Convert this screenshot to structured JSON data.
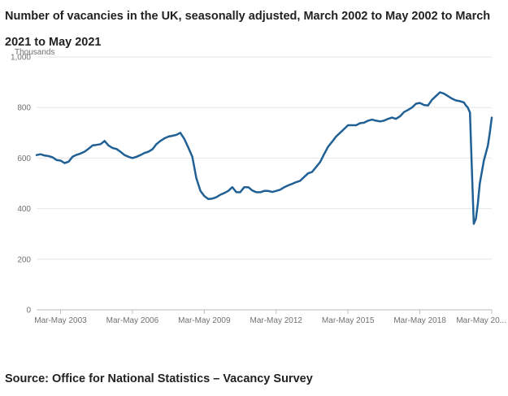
{
  "title": "Number of vacancies in the UK, seasonally adjusted, March 2002 to May 2002 to March 2021 to May 2021",
  "source": "Source: Office for National Statistics – Vacancy Survey",
  "chart_data": {
    "type": "line",
    "title": "Number of vacancies in the UK, seasonally adjusted, March 2002 to May 2002 to March 2021 to May 2021",
    "ylabel": "Thousands",
    "xlabel": "",
    "ylim": [
      0,
      1000
    ],
    "xlim": [
      2002.33,
      2021.33
    ],
    "y_ticks": [
      0,
      200,
      400,
      600,
      800,
      1000
    ],
    "y_tick_labels": [
      "0",
      "200",
      "400",
      "600",
      "800",
      "1,000"
    ],
    "x_ticks": [
      2003.33,
      2006.33,
      2009.33,
      2012.33,
      2015.33,
      2018.33,
      2021.33
    ],
    "x_tick_labels": [
      "Mar-May 2003",
      "Mar-May 2006",
      "Mar-May 2009",
      "Mar-May 2012",
      "Mar-May 2015",
      "Mar-May 2018",
      "Mar-May 20..."
    ],
    "grid": true,
    "line_color": "#206095",
    "series": [
      {
        "name": "",
        "points": [
          [
            2002.33,
            612
          ],
          [
            2002.5,
            615
          ],
          [
            2002.67,
            610
          ],
          [
            2002.83,
            608
          ],
          [
            2003.0,
            603
          ],
          [
            2003.17,
            592
          ],
          [
            2003.33,
            590
          ],
          [
            2003.5,
            580
          ],
          [
            2003.67,
            586
          ],
          [
            2003.83,
            605
          ],
          [
            2004.0,
            613
          ],
          [
            2004.17,
            618
          ],
          [
            2004.33,
            625
          ],
          [
            2004.5,
            637
          ],
          [
            2004.67,
            650
          ],
          [
            2004.83,
            652
          ],
          [
            2005.0,
            655
          ],
          [
            2005.17,
            668
          ],
          [
            2005.33,
            650
          ],
          [
            2005.5,
            640
          ],
          [
            2005.67,
            636
          ],
          [
            2005.83,
            625
          ],
          [
            2006.0,
            612
          ],
          [
            2006.17,
            605
          ],
          [
            2006.33,
            600
          ],
          [
            2006.5,
            605
          ],
          [
            2006.67,
            612
          ],
          [
            2006.83,
            620
          ],
          [
            2007.0,
            625
          ],
          [
            2007.17,
            635
          ],
          [
            2007.33,
            655
          ],
          [
            2007.5,
            668
          ],
          [
            2007.67,
            678
          ],
          [
            2007.83,
            685
          ],
          [
            2008.0,
            688
          ],
          [
            2008.17,
            692
          ],
          [
            2008.33,
            700
          ],
          [
            2008.5,
            675
          ],
          [
            2008.67,
            640
          ],
          [
            2008.83,
            605
          ],
          [
            2009.0,
            520
          ],
          [
            2009.17,
            470
          ],
          [
            2009.33,
            450
          ],
          [
            2009.5,
            438
          ],
          [
            2009.67,
            440
          ],
          [
            2009.83,
            445
          ],
          [
            2010.0,
            455
          ],
          [
            2010.17,
            462
          ],
          [
            2010.33,
            470
          ],
          [
            2010.5,
            485
          ],
          [
            2010.67,
            465
          ],
          [
            2010.83,
            465
          ],
          [
            2011.0,
            485
          ],
          [
            2011.17,
            485
          ],
          [
            2011.33,
            472
          ],
          [
            2011.5,
            465
          ],
          [
            2011.67,
            465
          ],
          [
            2011.83,
            470
          ],
          [
            2012.0,
            470
          ],
          [
            2012.17,
            466
          ],
          [
            2012.33,
            470
          ],
          [
            2012.5,
            475
          ],
          [
            2012.67,
            485
          ],
          [
            2012.83,
            492
          ],
          [
            2013.0,
            498
          ],
          [
            2013.17,
            505
          ],
          [
            2013.33,
            510
          ],
          [
            2013.5,
            525
          ],
          [
            2013.67,
            540
          ],
          [
            2013.83,
            545
          ],
          [
            2014.0,
            565
          ],
          [
            2014.17,
            585
          ],
          [
            2014.33,
            615
          ],
          [
            2014.5,
            645
          ],
          [
            2014.67,
            665
          ],
          [
            2014.83,
            685
          ],
          [
            2015.0,
            700
          ],
          [
            2015.17,
            715
          ],
          [
            2015.33,
            730
          ],
          [
            2015.5,
            730
          ],
          [
            2015.67,
            730
          ],
          [
            2015.83,
            738
          ],
          [
            2016.0,
            740
          ],
          [
            2016.17,
            748
          ],
          [
            2016.33,
            752
          ],
          [
            2016.5,
            748
          ],
          [
            2016.67,
            745
          ],
          [
            2016.83,
            748
          ],
          [
            2017.0,
            755
          ],
          [
            2017.17,
            760
          ],
          [
            2017.33,
            755
          ],
          [
            2017.5,
            765
          ],
          [
            2017.67,
            782
          ],
          [
            2017.83,
            790
          ],
          [
            2018.0,
            800
          ],
          [
            2018.17,
            815
          ],
          [
            2018.33,
            818
          ],
          [
            2018.5,
            810
          ],
          [
            2018.67,
            808
          ],
          [
            2018.83,
            830
          ],
          [
            2019.0,
            845
          ],
          [
            2019.17,
            860
          ],
          [
            2019.33,
            855
          ],
          [
            2019.5,
            845
          ],
          [
            2019.67,
            835
          ],
          [
            2019.83,
            828
          ],
          [
            2020.0,
            825
          ],
          [
            2020.17,
            820
          ],
          [
            2020.25,
            808
          ],
          [
            2020.33,
            800
          ],
          [
            2020.42,
            780
          ],
          [
            2020.5,
            560
          ],
          [
            2020.58,
            340
          ],
          [
            2020.67,
            360
          ],
          [
            2020.75,
            420
          ],
          [
            2020.83,
            500
          ],
          [
            2021.0,
            590
          ],
          [
            2021.17,
            650
          ],
          [
            2021.25,
            700
          ],
          [
            2021.33,
            760
          ]
        ]
      }
    ]
  }
}
